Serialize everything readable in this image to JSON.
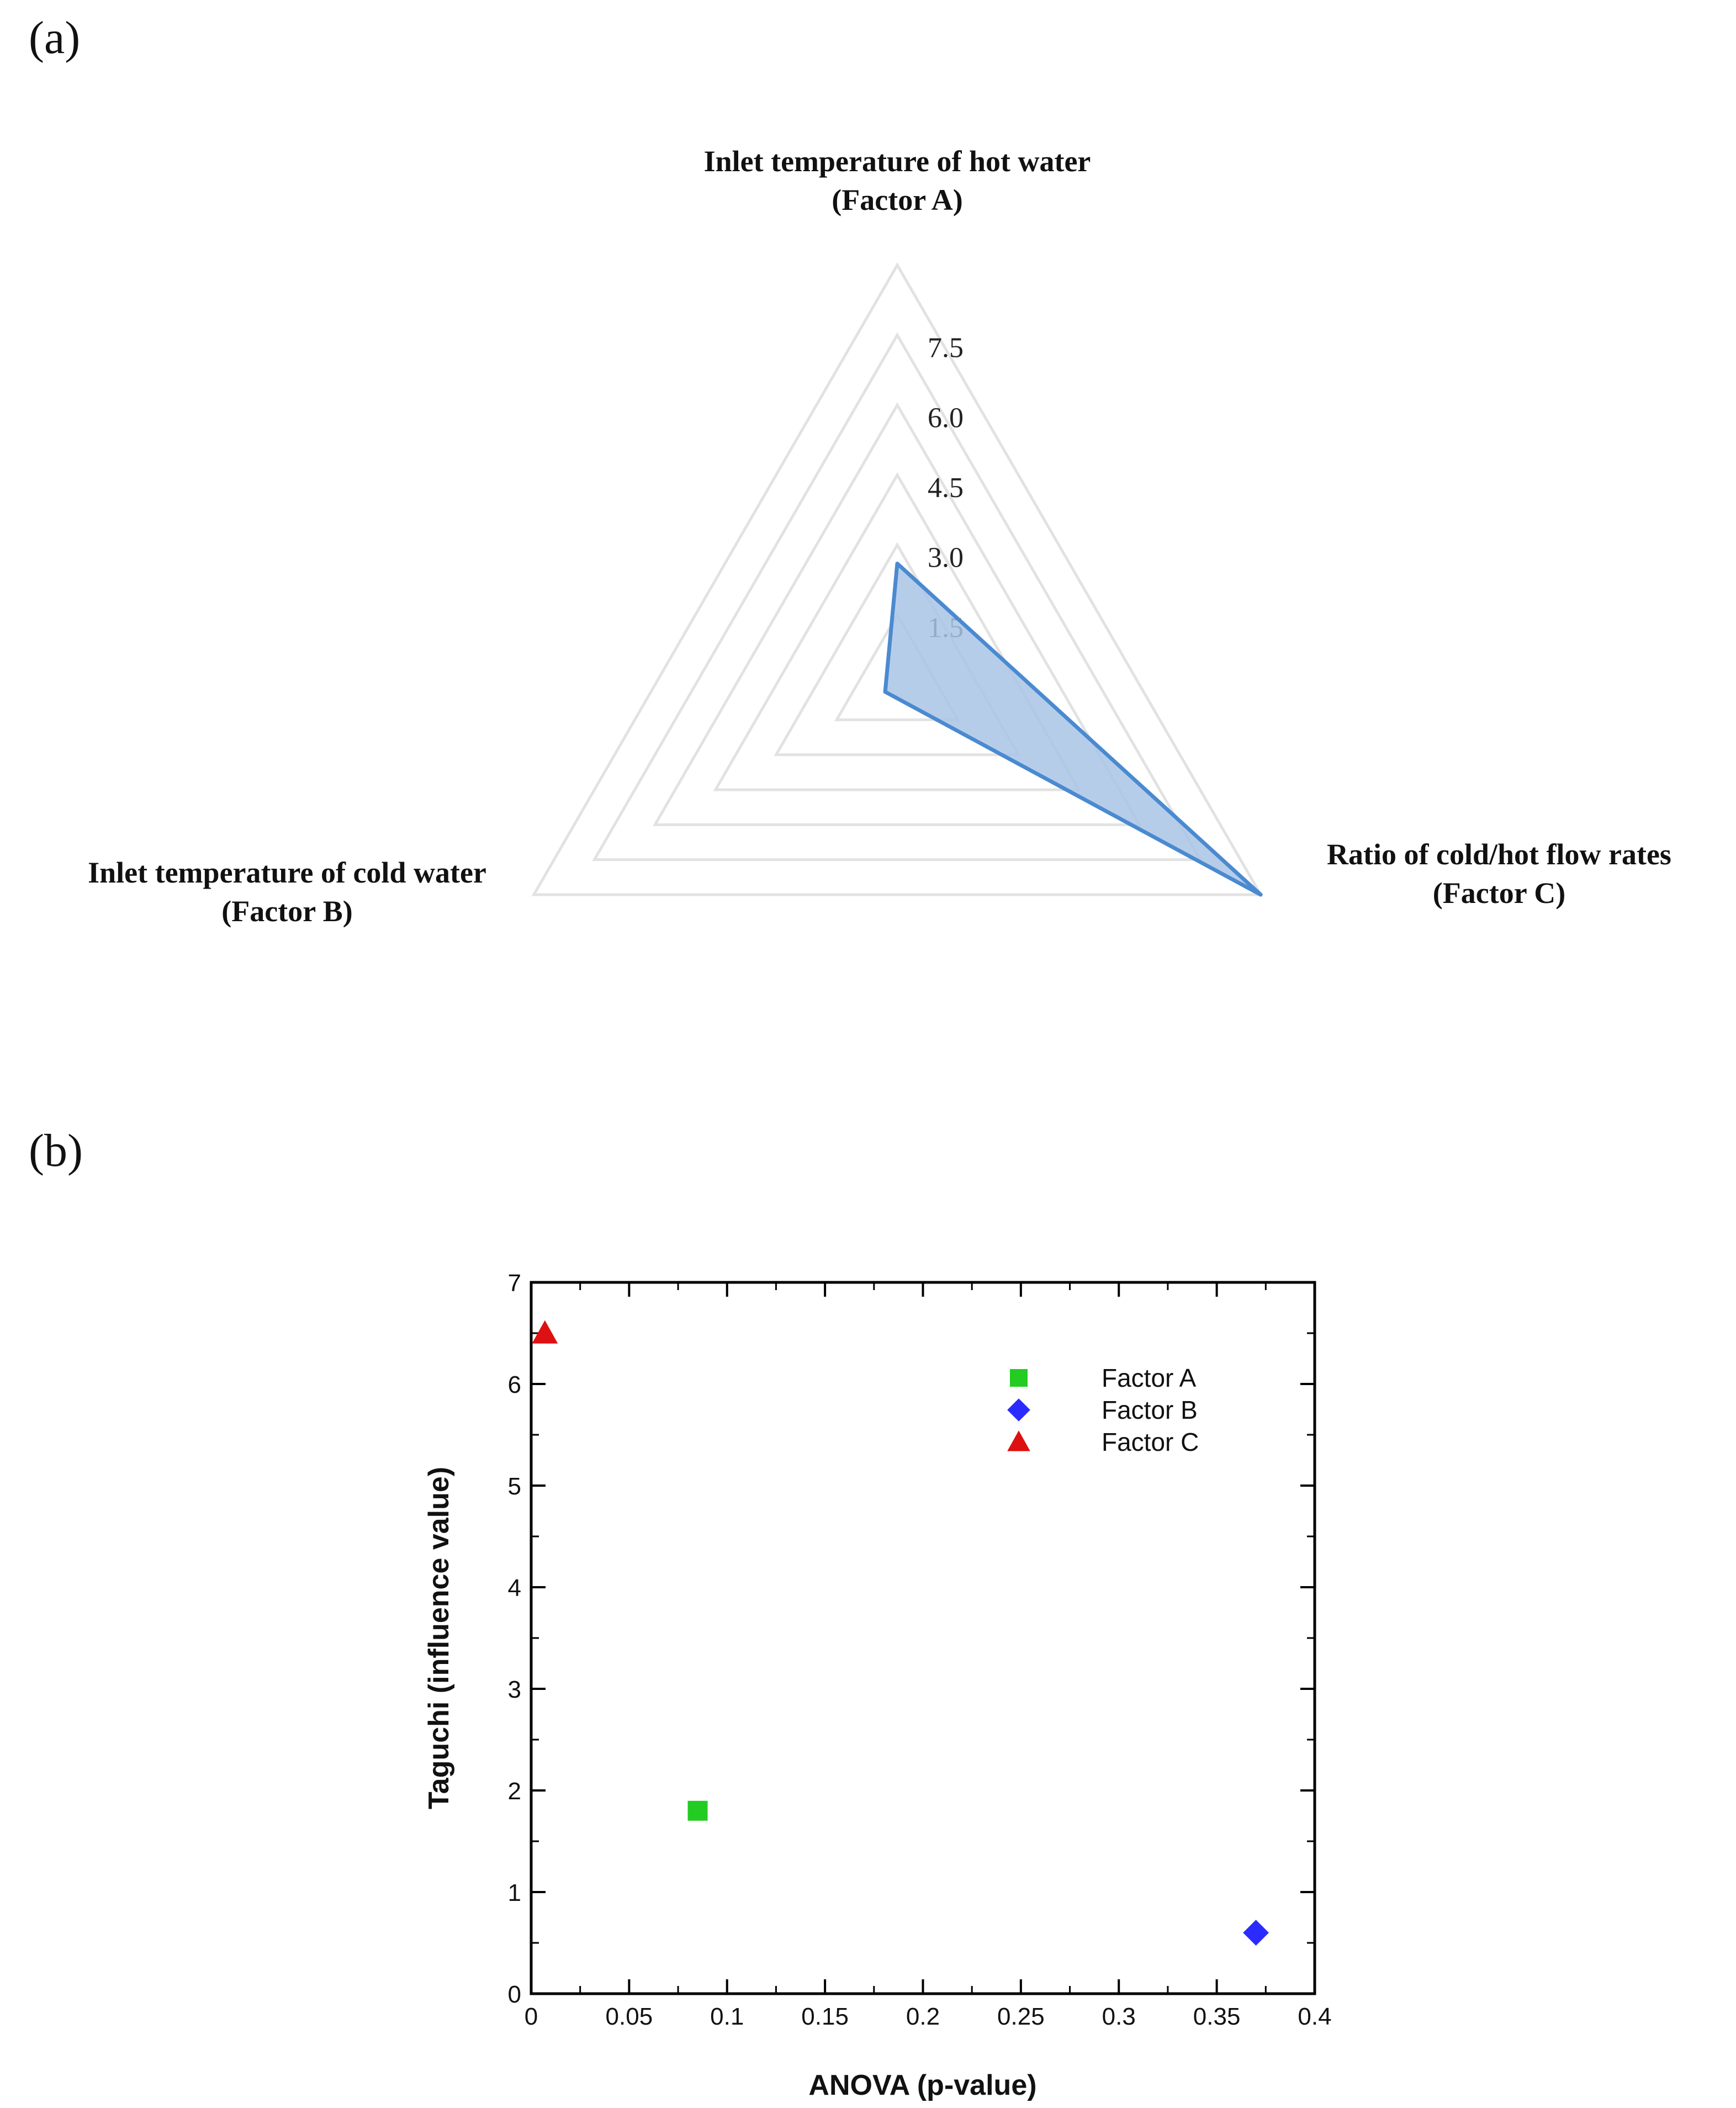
{
  "panels": {
    "a_label": "(a)",
    "b_label": "(b)"
  },
  "colors": {
    "radar_grid": "#e2e2e2",
    "radar_fill": "#a9c4e6",
    "radar_stroke": "#4a8ad0",
    "factor_a": "#22cc22",
    "factor_b": "#2b2bff",
    "factor_c": "#dd1111"
  },
  "chart_data": [
    {
      "type": "radar",
      "axes": [
        {
          "line1": "Inlet temperature of hot water",
          "line2": "(Factor A)"
        },
        {
          "line1": "Ratio of cold/hot flow rates",
          "line2": "(Factor C)"
        },
        {
          "line1": "Inlet temperature of cold water",
          "line2": "(Factor B)"
        }
      ],
      "rings": [
        1.5,
        3.0,
        4.5,
        6.0,
        7.5,
        9.0
      ],
      "tick_labels": [
        "1.5",
        "3.0",
        "4.5",
        "6.0",
        "7.5"
      ],
      "max": 9.0,
      "values": [
        2.6,
        9.0,
        0.3
      ]
    },
    {
      "type": "scatter",
      "xlabel": "ANOVA (p-value)",
      "ylabel": "Taguchi (influence value)",
      "xlim": [
        0,
        0.4
      ],
      "ylim": [
        0,
        7
      ],
      "xticks": [
        "0",
        "0.05",
        "0.1",
        "0.15",
        "0.2",
        "0.25",
        "0.3",
        "0.35",
        "0.4"
      ],
      "yticks": [
        "0",
        "1",
        "2",
        "3",
        "4",
        "5",
        "6",
        "7"
      ],
      "legend_position": "top-right",
      "series": [
        {
          "name": "Factor A",
          "marker": "square",
          "x": 0.085,
          "y": 1.8
        },
        {
          "name": "Factor B",
          "marker": "diamond",
          "x": 0.37,
          "y": 0.6
        },
        {
          "name": "Factor C",
          "marker": "triangle",
          "x": 0.007,
          "y": 6.5
        }
      ]
    }
  ]
}
